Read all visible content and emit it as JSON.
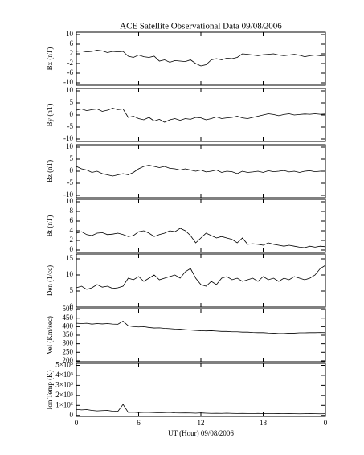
{
  "chart_data": [
    {
      "type": "line",
      "title": "ACE Satellite Observational Data   09/08/2006",
      "ylabel": "Bx (nT)",
      "x": [
        0,
        0.5,
        1,
        1.5,
        2,
        2.5,
        3,
        3.5,
        4,
        4.5,
        5,
        5.5,
        6,
        6.5,
        7,
        7.5,
        8,
        8.5,
        9,
        9.5,
        10,
        10.5,
        11,
        11.5,
        12,
        12.5,
        13,
        13.5,
        14,
        14.5,
        15,
        15.5,
        16,
        16.5,
        17,
        17.5,
        18,
        18.5,
        19,
        19.5,
        20,
        20.5,
        21,
        21.5,
        22,
        22.5,
        23,
        23.5,
        24
      ],
      "series": [
        {
          "name": "Bx",
          "color": "#000000",
          "values": [
            3,
            3.2,
            2.8,
            3,
            3.5,
            3.2,
            2.5,
            3,
            2.8,
            3,
            1,
            0.5,
            1.5,
            0.8,
            0.5,
            1,
            -1,
            -0.5,
            -1.5,
            -0.8,
            -1,
            -1.2,
            -0.5,
            -2,
            -3,
            -2.5,
            -0.5,
            0,
            -0.5,
            0.2,
            0,
            0.5,
            2,
            1.8,
            1.5,
            1.2,
            1.6,
            1.8,
            2,
            1.5,
            1.2,
            1.5,
            1.8,
            1.4,
            0.8,
            1.2,
            1.5,
            1.2,
            1.3
          ]
        }
      ],
      "xlim": [
        0,
        24
      ],
      "ylim": [
        -11,
        11
      ],
      "yticks": [
        -10,
        -6,
        -2,
        2,
        6,
        10
      ]
    },
    {
      "type": "line",
      "ylabel": "By (nT)",
      "x": [
        0,
        0.5,
        1,
        1.5,
        2,
        2.5,
        3,
        3.5,
        4,
        4.5,
        5,
        5.5,
        6,
        6.5,
        7,
        7.5,
        8,
        8.5,
        9,
        9.5,
        10,
        10.5,
        11,
        11.5,
        12,
        12.5,
        13,
        13.5,
        14,
        14.5,
        15,
        15.5,
        16,
        16.5,
        17,
        17.5,
        18,
        18.5,
        19,
        19.5,
        20,
        20.5,
        21,
        21.5,
        22,
        22.5,
        23,
        23.5,
        24
      ],
      "series": [
        {
          "name": "By",
          "color": "#000000",
          "values": [
            2,
            2.5,
            1.8,
            2.2,
            2.5,
            1.5,
            2,
            2.8,
            2.2,
            2.5,
            -1,
            -0.5,
            -1.5,
            -2,
            -1,
            -2.5,
            -1.8,
            -3,
            -2,
            -1.5,
            -2.2,
            -1.5,
            -1.8,
            -1,
            -1.2,
            -2,
            -1.5,
            -0.8,
            -1.5,
            -1.2,
            -1,
            -0.5,
            -1.2,
            -1.5,
            -1,
            -0.5,
            0,
            0.5,
            0.2,
            -0.3,
            0.2,
            0.5,
            0,
            0.2,
            0.4,
            0.3,
            0.5,
            0.3,
            0.4
          ]
        }
      ],
      "xlim": [
        0,
        24
      ],
      "ylim": [
        -11,
        11
      ],
      "yticks": [
        -10,
        -5,
        0,
        5,
        10
      ]
    },
    {
      "type": "line",
      "ylabel": "Bz (nT)",
      "x": [
        0,
        0.5,
        1,
        1.5,
        2,
        2.5,
        3,
        3.5,
        4,
        4.5,
        5,
        5.5,
        6,
        6.5,
        7,
        7.5,
        8,
        8.5,
        9,
        9.5,
        10,
        10.5,
        11,
        11.5,
        12,
        12.5,
        13,
        13.5,
        14,
        14.5,
        15,
        15.5,
        16,
        16.5,
        17,
        17.5,
        18,
        18.5,
        19,
        19.5,
        20,
        20.5,
        21,
        21.5,
        22,
        22.5,
        23,
        23.5,
        24
      ],
      "series": [
        {
          "name": "Bz",
          "color": "#000000",
          "values": [
            2,
            1,
            0.5,
            -0.5,
            0,
            -1,
            -1.5,
            -2,
            -1.5,
            -1,
            -1.5,
            -0.5,
            1,
            2,
            2.5,
            2,
            1.5,
            2,
            1.2,
            1,
            0.5,
            1,
            0.5,
            0,
            0.5,
            -0.3,
            0,
            0.5,
            -0.5,
            0,
            -0.2,
            -1,
            0,
            -0.5,
            -0.3,
            0,
            -0.5,
            0.2,
            -0.2,
            0,
            0.3,
            -0.3,
            0,
            -0.5,
            0,
            0.2,
            -0.2,
            0,
            0
          ]
        }
      ],
      "xlim": [
        0,
        24
      ],
      "ylim": [
        -11,
        11
      ],
      "yticks": [
        -10,
        -5,
        0,
        5,
        10
      ]
    },
    {
      "type": "line",
      "ylabel": "Bt (nT)",
      "x": [
        0,
        0.5,
        1,
        1.5,
        2,
        2.5,
        3,
        3.5,
        4,
        4.5,
        5,
        5.5,
        6,
        6.5,
        7,
        7.5,
        8,
        8.5,
        9,
        9.5,
        10,
        10.5,
        11,
        11.5,
        12,
        12.5,
        13,
        13.5,
        14,
        14.5,
        15,
        15.5,
        16,
        16.5,
        17,
        17.5,
        18,
        18.5,
        19,
        19.5,
        20,
        20.5,
        21,
        21.5,
        22,
        22.5,
        23,
        23.5,
        24
      ],
      "series": [
        {
          "name": "Bt",
          "color": "#000000",
          "values": [
            3.5,
            3.8,
            3.2,
            3,
            3.5,
            3.6,
            3.2,
            3.3,
            3.5,
            3.2,
            2.8,
            3,
            3.8,
            4,
            3.5,
            2.8,
            3.2,
            3.5,
            4,
            3.8,
            4.5,
            4,
            3,
            1.5,
            2.5,
            3.5,
            3,
            2.5,
            2.8,
            2.5,
            2.2,
            1.5,
            2.5,
            1.2,
            1.3,
            1.2,
            1,
            1.5,
            1.2,
            1,
            0.8,
            1,
            0.8,
            0.6,
            0.5,
            0.8,
            0.6,
            0.8,
            0.7
          ]
        }
      ],
      "xlim": [
        0,
        24
      ],
      "ylim": [
        -0.5,
        10.5
      ],
      "yticks": [
        0,
        2,
        4,
        6,
        8,
        10
      ]
    },
    {
      "type": "line",
      "ylabel": "Den (1/cc)",
      "x": [
        0,
        0.5,
        1,
        1.5,
        2,
        2.5,
        3,
        3.5,
        4,
        4.5,
        5,
        5.5,
        6,
        6.5,
        7,
        7.5,
        8,
        8.5,
        9,
        9.5,
        10,
        10.5,
        11,
        11.5,
        12,
        12.5,
        13,
        13.5,
        14,
        14.5,
        15,
        15.5,
        16,
        16.5,
        17,
        17.5,
        18,
        18.5,
        19,
        19.5,
        20,
        20.5,
        21,
        21.5,
        22,
        22.5,
        23,
        23.5,
        24
      ],
      "series": [
        {
          "name": "Den",
          "color": "#000000",
          "values": [
            6,
            6.5,
            5.5,
            6,
            7,
            6.2,
            6.5,
            5.8,
            6,
            6.5,
            9,
            8.5,
            9.5,
            8,
            9,
            10,
            8.5,
            9,
            9.5,
            10,
            9,
            11,
            12,
            9,
            7,
            6.5,
            8,
            7,
            9,
            9.5,
            8.5,
            9,
            8,
            8.5,
            9,
            8,
            9.5,
            8.5,
            9,
            8,
            9,
            8.5,
            9.5,
            9,
            8.5,
            9,
            10,
            12,
            13
          ]
        }
      ],
      "xlim": [
        0,
        24
      ],
      "ylim": [
        0,
        16.5
      ],
      "yticks": [
        0,
        5,
        10,
        15
      ]
    },
    {
      "type": "line",
      "ylabel": "Vel (Km/sec)",
      "x": [
        0,
        0.5,
        1,
        1.5,
        2,
        2.5,
        3,
        3.5,
        4,
        4.5,
        5,
        5.5,
        6,
        6.5,
        7,
        7.5,
        8,
        8.5,
        9,
        9.5,
        10,
        10.5,
        11,
        11.5,
        12,
        12.5,
        13,
        13.5,
        14,
        14.5,
        15,
        15.5,
        16,
        16.5,
        17,
        17.5,
        18,
        18.5,
        19,
        19.5,
        20,
        20.5,
        21,
        21.5,
        22,
        22.5,
        23,
        23.5,
        24
      ],
      "series": [
        {
          "name": "Vel",
          "color": "#000000",
          "values": [
            420,
            418,
            420,
            415,
            418,
            416,
            418,
            415,
            414,
            432,
            405,
            400,
            398,
            400,
            395,
            392,
            393,
            390,
            388,
            386,
            385,
            382,
            380,
            378,
            376,
            375,
            376,
            374,
            372,
            372,
            370,
            370,
            368,
            368,
            366,
            365,
            365,
            363,
            362,
            360,
            360,
            362,
            362,
            364,
            364,
            365,
            365,
            366,
            365
          ]
        }
      ],
      "xlim": [
        0,
        24
      ],
      "ylim": [
        195,
        505
      ],
      "yticks": [
        200,
        250,
        300,
        350,
        400,
        450,
        500
      ]
    },
    {
      "type": "line",
      "ylabel": "Ion Temp (K)",
      "xlabel": "UT (Hour)   09/08/2006",
      "x": [
        0,
        0.5,
        1,
        1.5,
        2,
        2.5,
        3,
        3.5,
        4,
        4.5,
        5,
        5.5,
        6,
        6.5,
        7,
        7.5,
        8,
        8.5,
        9,
        9.5,
        10,
        10.5,
        11,
        11.5,
        12,
        12.5,
        13,
        13.5,
        14,
        14.5,
        15,
        15.5,
        16,
        16.5,
        17,
        17.5,
        18,
        18.5,
        19,
        19.5,
        20,
        20.5,
        21,
        21.5,
        22,
        22.5,
        23,
        23.5,
        24
      ],
      "series": [
        {
          "name": "Ion Temp",
          "color": "#000000",
          "values": [
            60000,
            55000,
            58000,
            50000,
            45000,
            48000,
            50000,
            42000,
            40000,
            110000,
            30000,
            32000,
            28000,
            30000,
            30000,
            28000,
            26000,
            28000,
            30000,
            25000,
            24000,
            25000,
            24000,
            22000,
            25000,
            22000,
            20000,
            21000,
            20000,
            22000,
            20000,
            19000,
            20000,
            19000,
            18000,
            20000,
            18000,
            17000,
            18000,
            19000,
            17000,
            18000,
            17000,
            16000,
            17000,
            18000,
            17000,
            16000,
            17000
          ]
        }
      ],
      "xlim": [
        0,
        24
      ],
      "xticks": [
        0,
        6,
        12,
        18,
        {
          "value": 24,
          "label": "0"
        }
      ],
      "ylim": [
        -10000,
        520000
      ],
      "yticks": [
        0,
        {
          "value": 100000,
          "label": "1×10⁵"
        },
        {
          "value": 200000,
          "label": "2×10⁵"
        },
        {
          "value": 300000,
          "label": "3×10⁵"
        },
        {
          "value": 400000,
          "label": "4×10⁵"
        },
        {
          "value": 500000,
          "label": "5×10⁵"
        }
      ]
    }
  ]
}
